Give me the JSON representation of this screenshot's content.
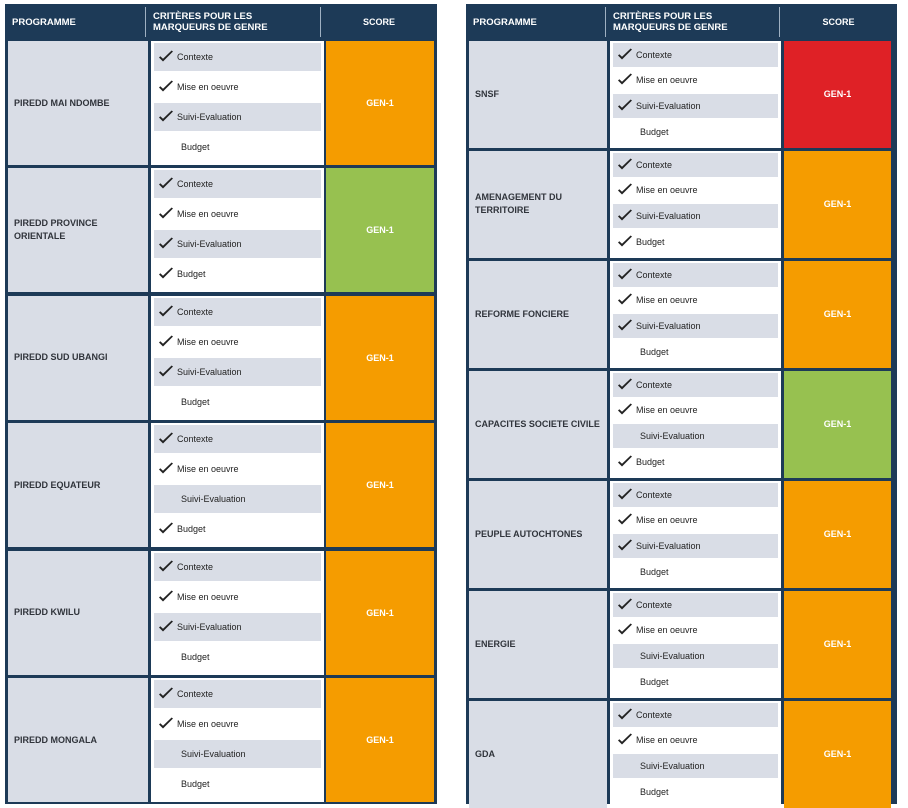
{
  "colors": {
    "orange": "#f59c00",
    "green": "#97c150",
    "red": "#df2126",
    "header_bg": "#1d3a57"
  },
  "headers": {
    "programme": "PROGRAMME",
    "criteria_line1": "CRITÈRES POUR LES",
    "criteria_line2": "MARQUEURS DE GENRE",
    "score": "SCORE"
  },
  "left": [
    {
      "programme": "PIREDD MAI NDOMBE",
      "score": "GEN-1",
      "score_color": "orange",
      "criteria": [
        {
          "label": "Contexte",
          "checked": true
        },
        {
          "label": "Mise en oeuvre",
          "checked": true
        },
        {
          "label": "Suivi-Evaluation",
          "checked": true
        },
        {
          "label": "Budget",
          "checked": false
        }
      ]
    },
    {
      "programme": "PIREDD PROVINCE ORIENTALE",
      "score": "GEN-1",
      "score_color": "green",
      "criteria": [
        {
          "label": "Contexte",
          "checked": true
        },
        {
          "label": "Mise en oeuvre",
          "checked": true
        },
        {
          "label": "Suivi-Evaluation",
          "checked": true
        },
        {
          "label": "Budget",
          "checked": true
        }
      ]
    },
    {
      "programme": "PIREDD SUD UBANGI",
      "score": "GEN-1",
      "score_color": "orange",
      "criteria": [
        {
          "label": "Contexte",
          "checked": true
        },
        {
          "label": "Mise en oeuvre",
          "checked": true
        },
        {
          "label": "Suivi-Evaluation",
          "checked": true
        },
        {
          "label": "Budget",
          "checked": false
        }
      ]
    },
    {
      "programme": "PIREDD EQUATEUR",
      "score": "GEN-1",
      "score_color": "orange",
      "criteria": [
        {
          "label": "Contexte",
          "checked": true
        },
        {
          "label": "Mise en oeuvre",
          "checked": true
        },
        {
          "label": "Suivi-Evaluation",
          "checked": false
        },
        {
          "label": "Budget",
          "checked": true
        }
      ]
    },
    {
      "programme": "PIREDD KWILU",
      "score": "GEN-1",
      "score_color": "orange",
      "criteria": [
        {
          "label": "Contexte",
          "checked": true
        },
        {
          "label": "Mise en oeuvre",
          "checked": true
        },
        {
          "label": "Suivi-Evaluation",
          "checked": true
        },
        {
          "label": "Budget",
          "checked": false
        }
      ]
    },
    {
      "programme": "PIREDD MONGALA",
      "score": "GEN-1",
      "score_color": "orange",
      "criteria": [
        {
          "label": "Contexte",
          "checked": true
        },
        {
          "label": "Mise en oeuvre",
          "checked": true
        },
        {
          "label": "Suivi-Evaluation",
          "checked": false
        },
        {
          "label": "Budget",
          "checked": false
        }
      ]
    }
  ],
  "right": [
    {
      "programme": "SNSF",
      "score": "GEN-1",
      "score_color": "red",
      "criteria": [
        {
          "label": "Contexte",
          "checked": true
        },
        {
          "label": "Mise en oeuvre",
          "checked": true
        },
        {
          "label": "Suivi-Evaluation",
          "checked": true
        },
        {
          "label": "Budget",
          "checked": false
        }
      ]
    },
    {
      "programme": "AMENAGEMENT DU TERRITOIRE",
      "score": "GEN-1",
      "score_color": "orange",
      "criteria": [
        {
          "label": "Contexte",
          "checked": true
        },
        {
          "label": "Mise en oeuvre",
          "checked": true
        },
        {
          "label": "Suivi-Evaluation",
          "checked": true
        },
        {
          "label": "Budget",
          "checked": true
        }
      ]
    },
    {
      "programme": "REFORME FONCIERE",
      "score": "GEN-1",
      "score_color": "orange",
      "criteria": [
        {
          "label": "Contexte",
          "checked": true
        },
        {
          "label": "Mise en oeuvre",
          "checked": true
        },
        {
          "label": "Suivi-Evaluation",
          "checked": true
        },
        {
          "label": "Budget",
          "checked": false
        }
      ]
    },
    {
      "programme": "CAPACITES SOCIETE CIVILE",
      "score": "GEN-1",
      "score_color": "green",
      "criteria": [
        {
          "label": "Contexte",
          "checked": true
        },
        {
          "label": "Mise en oeuvre",
          "checked": true
        },
        {
          "label": "Suivi-Evaluation",
          "checked": false
        },
        {
          "label": "Budget",
          "checked": true
        }
      ]
    },
    {
      "programme": "PEUPLE AUTOCHTONES",
      "score": "GEN-1",
      "score_color": "orange",
      "criteria": [
        {
          "label": "Contexte",
          "checked": true
        },
        {
          "label": "Mise en oeuvre",
          "checked": true
        },
        {
          "label": "Suivi-Evaluation",
          "checked": true
        },
        {
          "label": "Budget",
          "checked": false
        }
      ]
    },
    {
      "programme": "ENERGIE",
      "score": "GEN-1",
      "score_color": "orange",
      "criteria": [
        {
          "label": "Contexte",
          "checked": true
        },
        {
          "label": "Mise en oeuvre",
          "checked": true
        },
        {
          "label": "Suivi-Evaluation",
          "checked": false
        },
        {
          "label": "Budget",
          "checked": false
        }
      ]
    },
    {
      "programme": "GDA",
      "score": "GEN-1",
      "score_color": "orange",
      "criteria": [
        {
          "label": "Contexte",
          "checked": true
        },
        {
          "label": "Mise en oeuvre",
          "checked": true
        },
        {
          "label": "Suivi-Evaluation",
          "checked": false
        },
        {
          "label": "Budget",
          "checked": false
        }
      ]
    }
  ]
}
